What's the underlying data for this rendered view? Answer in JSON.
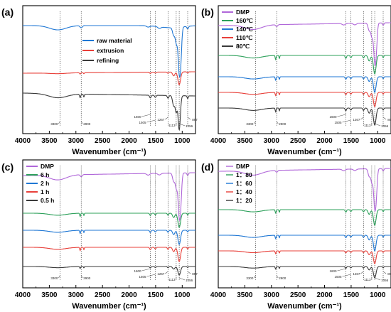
{
  "figure": {
    "palette": {
      "blue": "#1f77d4",
      "red": "#e8403a",
      "dark": "#3a3a3a",
      "purple": "#b067d9",
      "green": "#2ca05a",
      "ann": "#555555",
      "vline": "#333333"
    }
  },
  "chart_data": [
    {
      "type": "line",
      "panel_label": "(a)",
      "xlabel": "Wavenumber (cm⁻¹)",
      "xlim": [
        4000,
        750
      ],
      "x_reversed": true,
      "x_ticks": [
        4000,
        3500,
        3000,
        2500,
        2000,
        1500,
        1000
      ],
      "y_ticks": [],
      "legend_position": "top-right",
      "legend_swatch": "line",
      "series": [
        {
          "name": "raw material",
          "color": "#1f77d4",
          "spectrum": "raw"
        },
        {
          "name": "extrusion",
          "color": "#e8403a",
          "spectrum": "ext"
        },
        {
          "name": "refining",
          "color": "#3a3a3a",
          "spectrum": "ref"
        }
      ],
      "peak_lines": [
        3300,
        2900,
        1600,
        1505,
        1267,
        1113,
        1056,
        897
      ],
      "annotations": [
        {
          "text": "3300",
          "x": 3300
        },
        {
          "text": "2900",
          "x": 2900
        },
        {
          "text": "1600",
          "x": 1600
        },
        {
          "text": "1505",
          "x": 1505
        },
        {
          "text": "1267",
          "x": 1267
        },
        {
          "text": "1113",
          "x": 1113
        },
        {
          "text": "1056",
          "x": 1056
        },
        {
          "text": "897",
          "x": 897
        }
      ]
    },
    {
      "type": "line",
      "panel_label": "(b)",
      "xlabel": "Wavenumber (cm⁻¹)",
      "xlim": [
        4000,
        750
      ],
      "x_reversed": true,
      "x_ticks": [
        4000,
        3500,
        3000,
        2500,
        2000,
        1500,
        1000
      ],
      "y_ticks": [],
      "legend_position": "top-left",
      "legend_swatch": "line",
      "series": [
        {
          "name": "DMP",
          "color": "#b067d9",
          "spectrum": "dmp"
        },
        {
          "name": "160℃",
          "color": "#2ca05a",
          "spectrum": "treated"
        },
        {
          "name": "140℃",
          "color": "#1f77d4",
          "spectrum": "treated"
        },
        {
          "name": "110℃",
          "color": "#e8403a",
          "spectrum": "treated"
        },
        {
          "name": "80℃",
          "color": "#3a3a3a",
          "spectrum": "treated"
        }
      ],
      "peak_lines": [
        3300,
        2900,
        1600,
        1505,
        1267,
        1113,
        1056,
        897
      ],
      "annotations": [
        {
          "text": "3300",
          "x": 3300
        },
        {
          "text": "2900",
          "x": 2900
        },
        {
          "text": "1600",
          "x": 1600
        },
        {
          "text": "1505",
          "x": 1505
        },
        {
          "text": "1267",
          "x": 1267
        },
        {
          "text": "1113",
          "x": 1113
        },
        {
          "text": "1056",
          "x": 1056
        },
        {
          "text": "897",
          "x": 897
        }
      ]
    },
    {
      "type": "line",
      "panel_label": "(c)",
      "xlabel": "Wavenumber (cm⁻¹)",
      "xlim": [
        4000,
        750
      ],
      "x_reversed": true,
      "x_ticks": [
        4000,
        3500,
        3000,
        2500,
        2000,
        1500,
        1000
      ],
      "y_ticks": [],
      "legend_position": "top-left",
      "legend_swatch": "line",
      "series": [
        {
          "name": "DMP",
          "color": "#b067d9",
          "spectrum": "dmp"
        },
        {
          "name": "6 h",
          "color": "#2ca05a",
          "spectrum": "treated"
        },
        {
          "name": "2 h",
          "color": "#1f77d4",
          "spectrum": "treated"
        },
        {
          "name": "1 h",
          "color": "#e8403a",
          "spectrum": "treated"
        },
        {
          "name": "0.5 h",
          "color": "#3a3a3a",
          "spectrum": "treated"
        }
      ],
      "peak_lines": [
        3300,
        2900,
        1600,
        1505,
        1267,
        1113,
        1056,
        897
      ],
      "annotations": [
        {
          "text": "3300",
          "x": 3300
        },
        {
          "text": "2900",
          "x": 2900
        },
        {
          "text": "1600",
          "x": 1600
        },
        {
          "text": "1505",
          "x": 1505
        },
        {
          "text": "1267",
          "x": 1267
        },
        {
          "text": "1113",
          "x": 1113
        },
        {
          "text": "1056",
          "x": 1056
        },
        {
          "text": "897",
          "x": 897
        }
      ]
    },
    {
      "type": "line",
      "panel_label": "(d)",
      "xlabel": "Wavenumber (cm⁻¹)",
      "xlim": [
        4000,
        750
      ],
      "x_reversed": true,
      "x_ticks": [
        4000,
        3500,
        3000,
        2500,
        2000,
        1500,
        1000
      ],
      "y_ticks": [],
      "legend_position": "top-left",
      "legend_swatch": "tick",
      "series": [
        {
          "name": "DMP",
          "color": "#b067d9",
          "spectrum": "dmp"
        },
        {
          "name": "1：80",
          "color": "#2ca05a",
          "spectrum": "treated"
        },
        {
          "name": "1：60",
          "color": "#1f77d4",
          "spectrum": "treated"
        },
        {
          "name": "1：40",
          "color": "#e8403a",
          "spectrum": "treated"
        },
        {
          "name": "1：20",
          "color": "#3a3a3a",
          "spectrum": "treated"
        }
      ],
      "peak_lines": [
        3300,
        2900,
        1600,
        1505,
        1267,
        1113,
        1056,
        897
      ],
      "annotations": [
        {
          "text": "3300",
          "x": 3300
        },
        {
          "text": "2900",
          "x": 2900
        },
        {
          "text": "1600",
          "x": 1600
        },
        {
          "text": "1505",
          "x": 1505
        },
        {
          "text": "1267",
          "x": 1267
        },
        {
          "text": "1113",
          "x": 1113
        },
        {
          "text": "1056",
          "x": 1056
        },
        {
          "text": "897",
          "x": 897
        }
      ]
    }
  ]
}
